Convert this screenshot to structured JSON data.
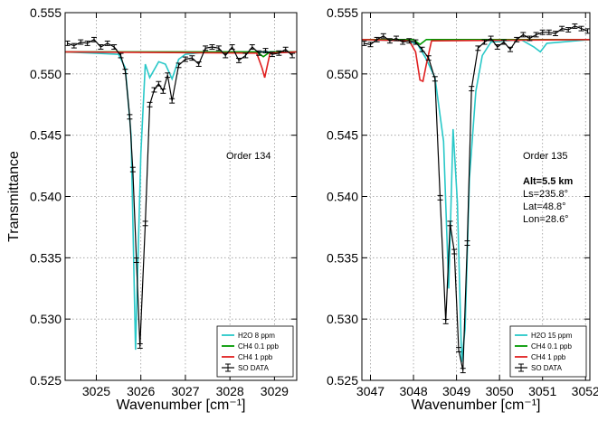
{
  "colors": {
    "h2o": "#29c8c8",
    "ch4_low": "#009900",
    "ch4_high": "#e02020",
    "data": "#000000",
    "grid": "#999999"
  },
  "chart_data": [
    {
      "type": "line",
      "xlabel": "Wavenumber [cm⁻¹]",
      "ylabel": "Transmittance",
      "xlim": [
        3024.3,
        3029.5
      ],
      "ylim": [
        0.525,
        0.555
      ],
      "xticks": [
        3025,
        3026,
        3027,
        3028,
        3029
      ],
      "yticks": [
        0.525,
        0.53,
        0.535,
        0.54,
        0.545,
        0.55,
        0.555
      ],
      "xtick_labels": [
        "3025",
        "3026",
        "3027",
        "3028",
        "3029"
      ],
      "ytick_labels": [
        "0.525",
        "0.530",
        "0.535",
        "0.540",
        "0.545",
        "0.550",
        "0.555"
      ],
      "grid": true,
      "legend_position": "lower-right",
      "annotations": [
        "Order 134"
      ],
      "series": [
        {
          "name": "H2O 8 ppm",
          "color": "#29c8c8",
          "x": [
            3024.3,
            3025.5,
            3025.65,
            3025.78,
            3025.88,
            3026.0,
            3026.1,
            3026.2,
            3026.4,
            3026.55,
            3026.7,
            3026.85,
            3027.0,
            3027.5,
            3028.0,
            3028.5,
            3029.0,
            3029.5
          ],
          "y": [
            0.5518,
            0.5516,
            0.5505,
            0.545,
            0.5275,
            0.5435,
            0.5508,
            0.5497,
            0.551,
            0.5508,
            0.5496,
            0.5512,
            0.5516,
            0.5518,
            0.5518,
            0.5518,
            0.5518,
            0.5518
          ]
        },
        {
          "name": "CH4 0.1 ppb",
          "color": "#009900",
          "x": [
            3024.3,
            3028.6,
            3028.75,
            3028.9,
            3029.5
          ],
          "y": [
            0.5518,
            0.5518,
            0.5514,
            0.5518,
            0.5518
          ]
        },
        {
          "name": "CH4 1 ppb",
          "color": "#e02020",
          "x": [
            3024.3,
            3028.6,
            3028.72,
            3028.78,
            3028.9,
            3029.5
          ],
          "y": [
            0.5518,
            0.5517,
            0.5505,
            0.5497,
            0.5517,
            0.5518
          ]
        },
        {
          "name": "SO DATA",
          "color": "#000000",
          "errorbar": true,
          "x": [
            3024.35,
            3024.5,
            3024.65,
            3024.8,
            3024.95,
            3025.1,
            3025.25,
            3025.4,
            3025.55,
            3025.65,
            3025.75,
            3025.82,
            3025.9,
            3025.98,
            3026.1,
            3026.2,
            3026.3,
            3026.4,
            3026.5,
            3026.6,
            3026.7,
            3026.85,
            3027.0,
            3027.15,
            3027.3,
            3027.45,
            3027.6,
            3027.75,
            3027.9,
            3028.05,
            3028.2,
            3028.35,
            3028.5,
            3028.65,
            3028.8,
            3028.95,
            3029.1,
            3029.25,
            3029.4
          ],
          "y": [
            0.5525,
            0.5523,
            0.5526,
            0.5525,
            0.5528,
            0.5522,
            0.5525,
            0.5522,
            0.5515,
            0.5502,
            0.5465,
            0.5422,
            0.5348,
            0.5278,
            0.5378,
            0.5475,
            0.5487,
            0.5492,
            0.5486,
            0.5499,
            0.5478,
            0.5507,
            0.5512,
            0.5513,
            0.5508,
            0.5521,
            0.5522,
            0.5521,
            0.5515,
            0.5522,
            0.5511,
            0.5515,
            0.5522,
            0.5517,
            0.5519,
            0.5516,
            0.5517,
            0.552,
            0.5515
          ]
        }
      ]
    },
    {
      "type": "line",
      "xlabel": "Wavenumber [cm⁻¹]",
      "ylabel": "",
      "xlim": [
        3046.8,
        3052.1
      ],
      "ylim": [
        0.525,
        0.555
      ],
      "xticks": [
        3047,
        3048,
        3049,
        3050,
        3051,
        3052
      ],
      "yticks": [
        0.525,
        0.53,
        0.535,
        0.54,
        0.545,
        0.55,
        0.555
      ],
      "xtick_labels": [
        "3047",
        "3048",
        "3049",
        "3050",
        "3051",
        "3052"
      ],
      "ytick_labels": [
        "0.525",
        "0.530",
        "0.535",
        "0.540",
        "0.545",
        "0.550",
        "0.555"
      ],
      "grid": true,
      "legend_position": "lower-right",
      "annotations": [
        "Order 135",
        "Alt=5.5 km",
        "Ls=235.8°",
        "Lat=48.8°",
        "Lon=28.6°"
      ],
      "series": [
        {
          "name": "H2O 15 ppm",
          "color": "#29c8c8",
          "x": [
            3046.8,
            3047.9,
            3048.1,
            3048.3,
            3048.5,
            3048.7,
            3048.82,
            3048.92,
            3049.02,
            3049.12,
            3049.2,
            3049.3,
            3049.45,
            3049.6,
            3049.8,
            3050.5,
            3050.8,
            3050.95,
            3051.1,
            3052.1
          ],
          "y": [
            0.5528,
            0.5527,
            0.5524,
            0.5512,
            0.5497,
            0.5445,
            0.5325,
            0.5455,
            0.5395,
            0.5265,
            0.5292,
            0.5415,
            0.5486,
            0.5515,
            0.5526,
            0.5528,
            0.5522,
            0.5518,
            0.5525,
            0.5528
          ]
        },
        {
          "name": "CH4 0.1 ppb",
          "color": "#009900",
          "x": [
            3046.8,
            3048.0,
            3048.15,
            3048.3,
            3052.1
          ],
          "y": [
            0.5528,
            0.5528,
            0.5524,
            0.5528,
            0.5528
          ]
        },
        {
          "name": "CH4 1 ppb",
          "color": "#e02020",
          "x": [
            3046.8,
            3047.9,
            3048.05,
            3048.15,
            3048.22,
            3048.3,
            3048.42,
            3052.1
          ],
          "y": [
            0.5528,
            0.5527,
            0.5518,
            0.5495,
            0.5494,
            0.5508,
            0.5527,
            0.5528
          ]
        },
        {
          "name": "SO DATA",
          "color": "#000000",
          "errorbar": true,
          "x": [
            3046.85,
            3047.0,
            3047.15,
            3047.3,
            3047.45,
            3047.6,
            3047.75,
            3047.9,
            3048.05,
            3048.2,
            3048.35,
            3048.5,
            3048.62,
            3048.75,
            3048.85,
            3048.95,
            3049.05,
            3049.15,
            3049.25,
            3049.35,
            3049.5,
            3049.65,
            3049.8,
            3049.95,
            3050.1,
            3050.25,
            3050.4,
            3050.55,
            3050.7,
            3050.85,
            3051.0,
            3051.15,
            3051.3,
            3051.45,
            3051.6,
            3051.75,
            3051.9,
            3052.05
          ],
          "y": [
            0.5525,
            0.5524,
            0.5528,
            0.5531,
            0.5527,
            0.5529,
            0.5526,
            0.5527,
            0.5526,
            0.552,
            0.5513,
            0.5496,
            0.5399,
            0.5298,
            0.5378,
            0.5355,
            0.5275,
            0.5258,
            0.5362,
            0.5488,
            0.5521,
            0.5526,
            0.5529,
            0.5522,
            0.5526,
            0.552,
            0.5528,
            0.5532,
            0.5529,
            0.5532,
            0.5534,
            0.5534,
            0.5533,
            0.5537,
            0.5536,
            0.5539,
            0.5537,
            0.5535
          ]
        }
      ]
    }
  ]
}
